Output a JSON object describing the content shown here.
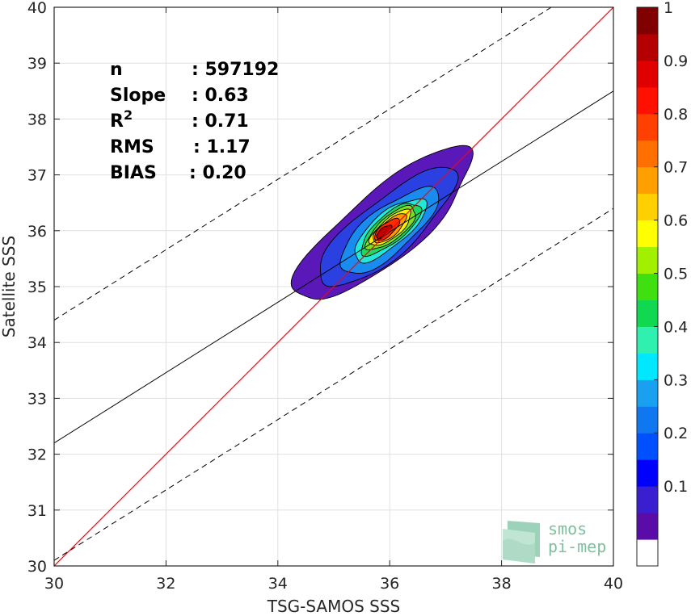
{
  "chart_data": {
    "type": "heatmap",
    "title": "",
    "xlabel": "TSG-SAMOS SSS",
    "ylabel": "Satellite SSS",
    "xlim": [
      30,
      40
    ],
    "ylim": [
      30,
      40
    ],
    "xticks": [
      "30",
      "32",
      "34",
      "36",
      "38",
      "40"
    ],
    "yticks": [
      "30",
      "31",
      "32",
      "33",
      "34",
      "35",
      "36",
      "37",
      "38",
      "39",
      "40"
    ],
    "grid": true,
    "stats": [
      {
        "label": "n",
        "value": ": 597192"
      },
      {
        "label": "Slope",
        "value": ": 0.63"
      },
      {
        "label": "R",
        "sup": "2",
        "value": ": 0.71"
      },
      {
        "label": "RMS",
        "value": ": 1.17"
      },
      {
        "label": "BIAS",
        "value": ": 0.20"
      }
    ],
    "lines": {
      "identity": {
        "slope": 1,
        "intercept": 0,
        "color": "#ff0000"
      },
      "regression": {
        "slope": 0.63,
        "intercept": 13.3,
        "color": "#000000"
      },
      "upper_bound": {
        "slope": 0.63,
        "intercept": 15.5,
        "style": "dashed"
      },
      "lower_bound": {
        "slope": 0.63,
        "intercept": 11.2,
        "style": "dashed"
      }
    },
    "density_contours": {
      "center": [
        35.9,
        36.0
      ],
      "angle_deg": 40,
      "levels": [
        {
          "level": 0.05,
          "color": "#5a18b8",
          "a": 2.0,
          "b": 0.62,
          "cx": 35.9,
          "cy": 36.1
        },
        {
          "level": 0.1,
          "color": "#2a40e0",
          "a": 1.55,
          "b": 0.5,
          "cx": 35.95,
          "cy": 36.05
        },
        {
          "level": 0.2,
          "color": "#1a8cf0",
          "a": 1.1,
          "b": 0.4,
          "cx": 35.98,
          "cy": 36.0
        },
        {
          "level": 0.35,
          "color": "#22e8d8",
          "a": 0.8,
          "b": 0.3,
          "cx": 36.0,
          "cy": 36.02
        },
        {
          "level": 0.45,
          "color": "#20d860",
          "a": 0.66,
          "b": 0.25,
          "cx": 36.02,
          "cy": 36.04
        },
        {
          "level": 0.55,
          "color": "#7ce020",
          "a": 0.55,
          "b": 0.21,
          "cx": 36.03,
          "cy": 36.05
        },
        {
          "level": 0.65,
          "color": "#fff000",
          "a": 0.46,
          "b": 0.17,
          "cx": 36.02,
          "cy": 36.05
        },
        {
          "level": 0.75,
          "color": "#ff9a00",
          "a": 0.37,
          "b": 0.14,
          "cx": 36.0,
          "cy": 36.04
        },
        {
          "level": 0.85,
          "color": "#ff2a00",
          "a": 0.28,
          "b": 0.11,
          "cx": 35.95,
          "cy": 36.02
        },
        {
          "level": 0.95,
          "color": "#c00000",
          "a": 0.17,
          "b": 0.07,
          "cx": 35.9,
          "cy": 35.98
        }
      ]
    },
    "colorbar": {
      "min": 0,
      "max": 1,
      "ticks": [
        "0.1",
        "0.2",
        "0.3",
        "0.4",
        "0.5",
        "0.6",
        "0.7",
        "0.8",
        "0.9",
        "1"
      ],
      "colors": [
        "#ffffff",
        "#5a0ca8",
        "#3a1fd0",
        "#0000ff",
        "#0050ff",
        "#0f78f0",
        "#1aa0f0",
        "#00e8ff",
        "#30f0b0",
        "#10d850",
        "#40e010",
        "#a0f000",
        "#ffff00",
        "#ffd000",
        "#ffa000",
        "#ff7000",
        "#ff4000",
        "#ff1000",
        "#e00000",
        "#b40000",
        "#800000"
      ]
    },
    "logo": {
      "line1": "smos",
      "line2": "pi-mep"
    }
  }
}
